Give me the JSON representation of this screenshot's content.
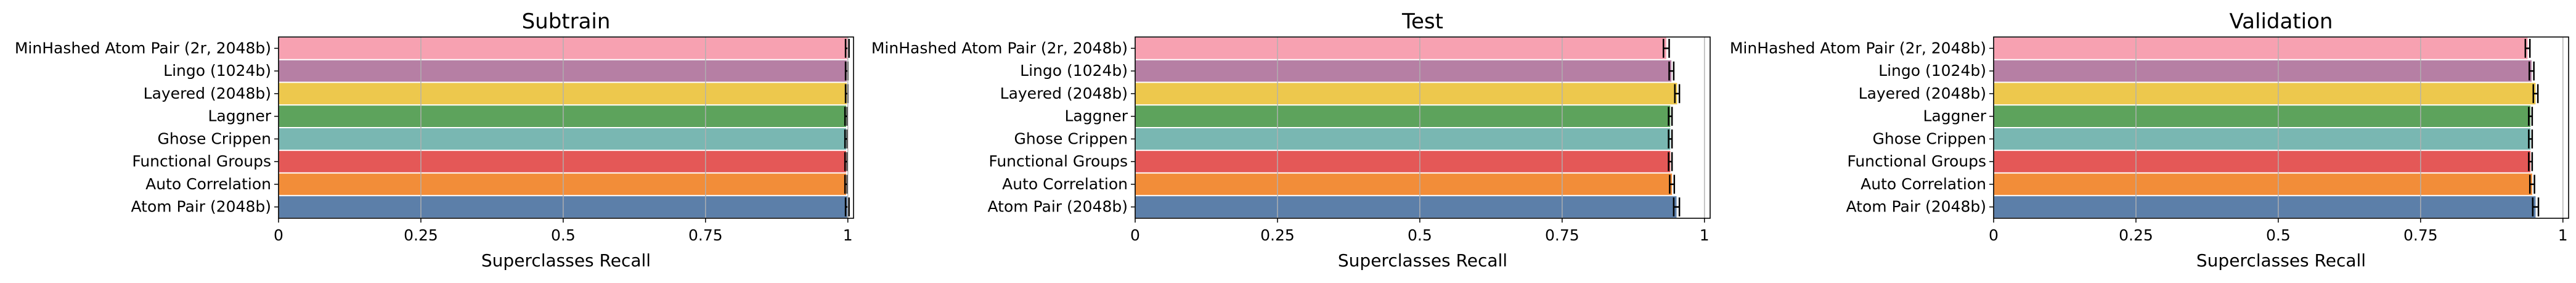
{
  "chart_data": [
    {
      "type": "bar",
      "orientation": "horizontal",
      "title": "Subtrain",
      "xlabel": "Superclasses Recall",
      "ylabel": "",
      "xlim": [
        0,
        1.01
      ],
      "xticks": [
        "0",
        "0.25",
        "0.5",
        "0.75",
        "1"
      ],
      "grid": "vertical",
      "categories": [
        "MinHashed Atom Pair (2r, 2048b)",
        "Lingo (1024b)",
        "Layered (2048b)",
        "Laggner",
        "Ghose Crippen",
        "Functional Groups",
        "Auto Correlation",
        "Atom Pair (2048b)"
      ],
      "values": [
        0.999,
        0.998,
        0.998,
        0.997,
        0.997,
        0.997,
        0.997,
        0.999
      ],
      "errors": [
        0.003,
        0.002,
        0.002,
        0.002,
        0.002,
        0.002,
        0.002,
        0.003
      ],
      "colors": [
        "#f7a1b1",
        "#b67fa4",
        "#edc84d",
        "#5da35c",
        "#79b7b2",
        "#e45857",
        "#f28d39",
        "#5c7fa9"
      ]
    },
    {
      "type": "bar",
      "orientation": "horizontal",
      "title": "Test",
      "xlabel": "Superclasses Recall",
      "ylabel": "",
      "xlim": [
        0,
        1.01
      ],
      "xticks": [
        "0",
        "0.25",
        "0.5",
        "0.75",
        "1"
      ],
      "grid": "vertical",
      "categories": [
        "MinHashed Atom Pair (2r, 2048b)",
        "Lingo (1024b)",
        "Layered (2048b)",
        "Laggner",
        "Ghose Crippen",
        "Functional Groups",
        "Auto Correlation",
        "Atom Pair (2048b)"
      ],
      "values": [
        0.933,
        0.942,
        0.952,
        0.94,
        0.94,
        0.94,
        0.943,
        0.951
      ],
      "errors": [
        0.005,
        0.004,
        0.004,
        0.003,
        0.003,
        0.003,
        0.004,
        0.005
      ],
      "colors": [
        "#f7a1b1",
        "#b67fa4",
        "#edc84d",
        "#5da35c",
        "#79b7b2",
        "#e45857",
        "#f28d39",
        "#5c7fa9"
      ]
    },
    {
      "type": "bar",
      "orientation": "horizontal",
      "title": "Validation",
      "xlabel": "Superclasses Recall",
      "ylabel": "",
      "xlim": [
        0,
        1.01
      ],
      "xticks": [
        "0",
        "0.25",
        "0.5",
        "0.75",
        "1"
      ],
      "grid": "vertical",
      "categories": [
        "MinHashed Atom Pair (2r, 2048b)",
        "Lingo (1024b)",
        "Layered (2048b)",
        "Laggner",
        "Ghose Crippen",
        "Functional Groups",
        "Auto Correlation",
        "Atom Pair (2048b)"
      ],
      "values": [
        0.938,
        0.945,
        0.952,
        0.943,
        0.943,
        0.943,
        0.946,
        0.952
      ],
      "errors": [
        0.004,
        0.004,
        0.004,
        0.003,
        0.003,
        0.003,
        0.004,
        0.005
      ],
      "colors": [
        "#f7a1b1",
        "#b67fa4",
        "#edc84d",
        "#5da35c",
        "#79b7b2",
        "#e45857",
        "#f28d39",
        "#5c7fa9"
      ]
    }
  ]
}
